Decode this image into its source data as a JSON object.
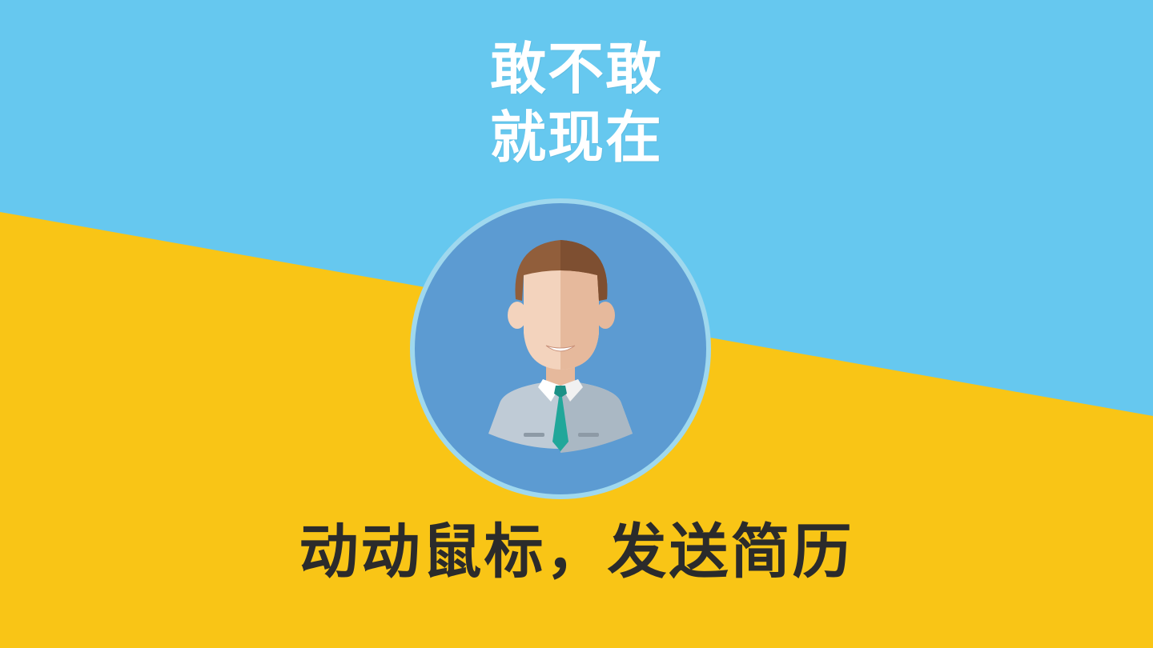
{
  "colors": {
    "sky": "#66c8ef",
    "yellow": "#f9c516",
    "circle": "#5c9bd2",
    "circle_ring": "#9fd8ee",
    "hair": "#915e3b",
    "skin_light": "#f3d3bd",
    "skin_dark": "#e6b99c",
    "shirt": "#bfcbd6",
    "tie": "#21a79a",
    "title_text": "#ffffff",
    "slogan_text": "#2b2b2b"
  },
  "title": {
    "line1": "敢不敢",
    "line2": "就现在"
  },
  "avatar": {
    "icon": "businessman-avatar-icon"
  },
  "slogan": "动动鼠标，发送简历"
}
